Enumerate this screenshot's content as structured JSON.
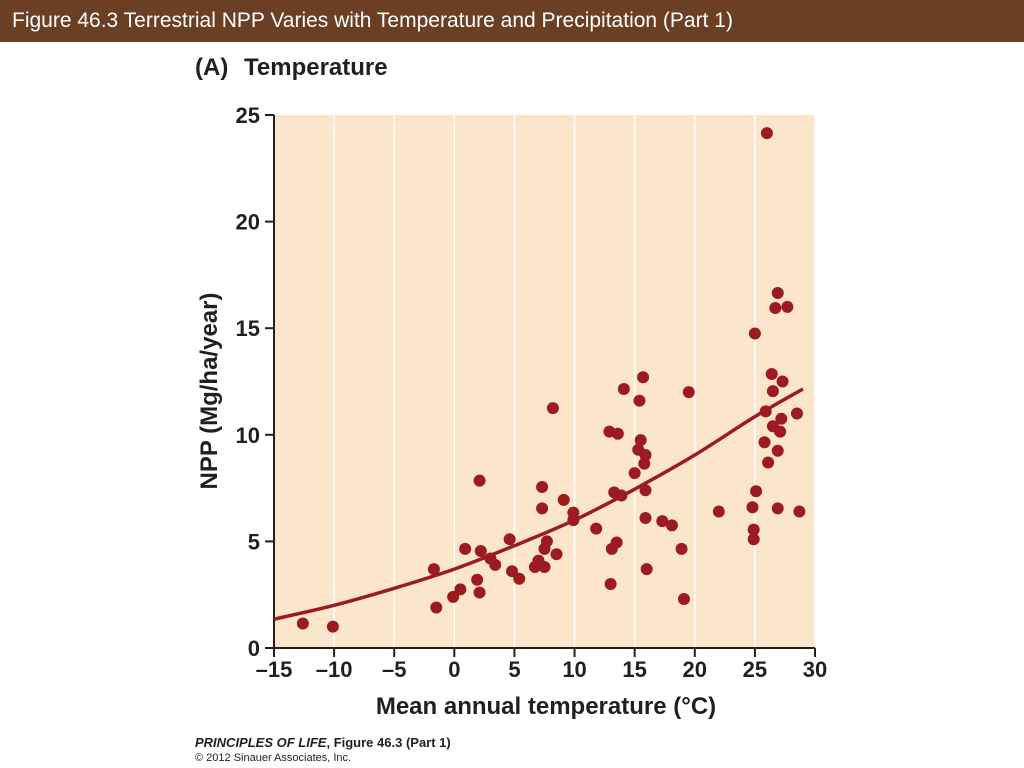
{
  "header": {
    "title": "Figure 46.3  Terrestrial NPP Varies with Temperature and Precipitation (Part 1)"
  },
  "colors": {
    "header_bg": "#6b3f23",
    "plot_bg": "#fbe5cb",
    "point": "#9b1b1f",
    "curve": "#9b1b1f",
    "axis": "#231f20",
    "grid": "#ffffff"
  },
  "chart_data": {
    "type": "scatter",
    "panel_label": "(A)",
    "title": "Temperature",
    "xlabel": "Mean annual temperature (°C)",
    "ylabel": "NPP (Mg/ha/year)",
    "xlim": [
      -15,
      30
    ],
    "ylim": [
      0,
      25
    ],
    "xticks": [
      -15,
      -10,
      -5,
      0,
      5,
      10,
      15,
      20,
      25,
      30
    ],
    "xtick_labels": [
      "–15",
      "–10",
      "–5",
      "0",
      "5",
      "10",
      "15",
      "20",
      "25",
      "30"
    ],
    "yticks": [
      0,
      5,
      10,
      15,
      20,
      25
    ],
    "ytick_labels": [
      "0",
      "5",
      "10",
      "15",
      "20",
      "25"
    ],
    "grid": "vertical",
    "points": [
      [
        -12.6,
        1.15
      ],
      [
        -10.1,
        1.0
      ],
      [
        -1.7,
        3.7
      ],
      [
        -1.5,
        1.9
      ],
      [
        -0.1,
        2.4
      ],
      [
        0.5,
        2.75
      ],
      [
        0.9,
        4.65
      ],
      [
        1.9,
        3.2
      ],
      [
        2.1,
        2.6
      ],
      [
        2.1,
        7.85
      ],
      [
        2.2,
        4.55
      ],
      [
        3.0,
        4.2
      ],
      [
        3.4,
        3.9
      ],
      [
        4.6,
        5.1
      ],
      [
        4.8,
        3.6
      ],
      [
        5.4,
        3.25
      ],
      [
        6.7,
        3.8
      ],
      [
        7.0,
        4.1
      ],
      [
        7.3,
        7.55
      ],
      [
        7.3,
        6.55
      ],
      [
        7.5,
        3.8
      ],
      [
        7.5,
        4.65
      ],
      [
        7.7,
        5.0
      ],
      [
        8.2,
        11.25
      ],
      [
        8.5,
        4.4
      ],
      [
        9.1,
        6.95
      ],
      [
        9.9,
        6.35
      ],
      [
        9.9,
        6.0
      ],
      [
        11.8,
        5.6
      ],
      [
        12.9,
        10.15
      ],
      [
        13.0,
        3.0
      ],
      [
        13.1,
        4.65
      ],
      [
        13.3,
        7.3
      ],
      [
        13.5,
        4.95
      ],
      [
        13.6,
        10.05
      ],
      [
        13.9,
        7.15
      ],
      [
        14.1,
        12.15
      ],
      [
        15.0,
        8.2
      ],
      [
        15.3,
        9.3
      ],
      [
        15.4,
        11.6
      ],
      [
        15.5,
        9.75
      ],
      [
        15.7,
        12.7
      ],
      [
        15.8,
        8.65
      ],
      [
        15.9,
        9.05
      ],
      [
        15.9,
        7.4
      ],
      [
        15.9,
        6.1
      ],
      [
        16.0,
        3.7
      ],
      [
        17.3,
        5.95
      ],
      [
        18.1,
        5.75
      ],
      [
        18.9,
        4.65
      ],
      [
        19.1,
        2.3
      ],
      [
        19.5,
        12.0
      ],
      [
        22.0,
        6.4
      ],
      [
        24.8,
        6.6
      ],
      [
        24.9,
        5.55
      ],
      [
        24.9,
        5.1
      ],
      [
        25.0,
        14.75
      ],
      [
        25.1,
        7.35
      ],
      [
        25.8,
        9.65
      ],
      [
        25.9,
        11.1
      ],
      [
        26.0,
        24.15
      ],
      [
        26.1,
        8.7
      ],
      [
        26.4,
        12.85
      ],
      [
        26.5,
        12.05
      ],
      [
        26.5,
        10.4
      ],
      [
        26.7,
        15.95
      ],
      [
        26.9,
        9.25
      ],
      [
        26.9,
        16.65
      ],
      [
        26.9,
        6.55
      ],
      [
        27.1,
        10.15
      ],
      [
        27.2,
        10.75
      ],
      [
        27.3,
        12.5
      ],
      [
        27.7,
        16.0
      ],
      [
        28.5,
        11.0
      ],
      [
        28.7,
        6.4
      ]
    ],
    "fit_curve": [
      [
        -15,
        1.35
      ],
      [
        -10,
        2.0
      ],
      [
        -5,
        2.8
      ],
      [
        0,
        3.7
      ],
      [
        5,
        4.8
      ],
      [
        10,
        6.0
      ],
      [
        15,
        7.45
      ],
      [
        20,
        9.05
      ],
      [
        25,
        10.85
      ],
      [
        29,
        12.15
      ]
    ]
  },
  "footer": {
    "book_title": "PRINCIPLES OF LIFE",
    "figure_ref": ", Figure 46.3 (Part 1)",
    "copyright": "© 2012 Sinauer Associates, Inc."
  }
}
